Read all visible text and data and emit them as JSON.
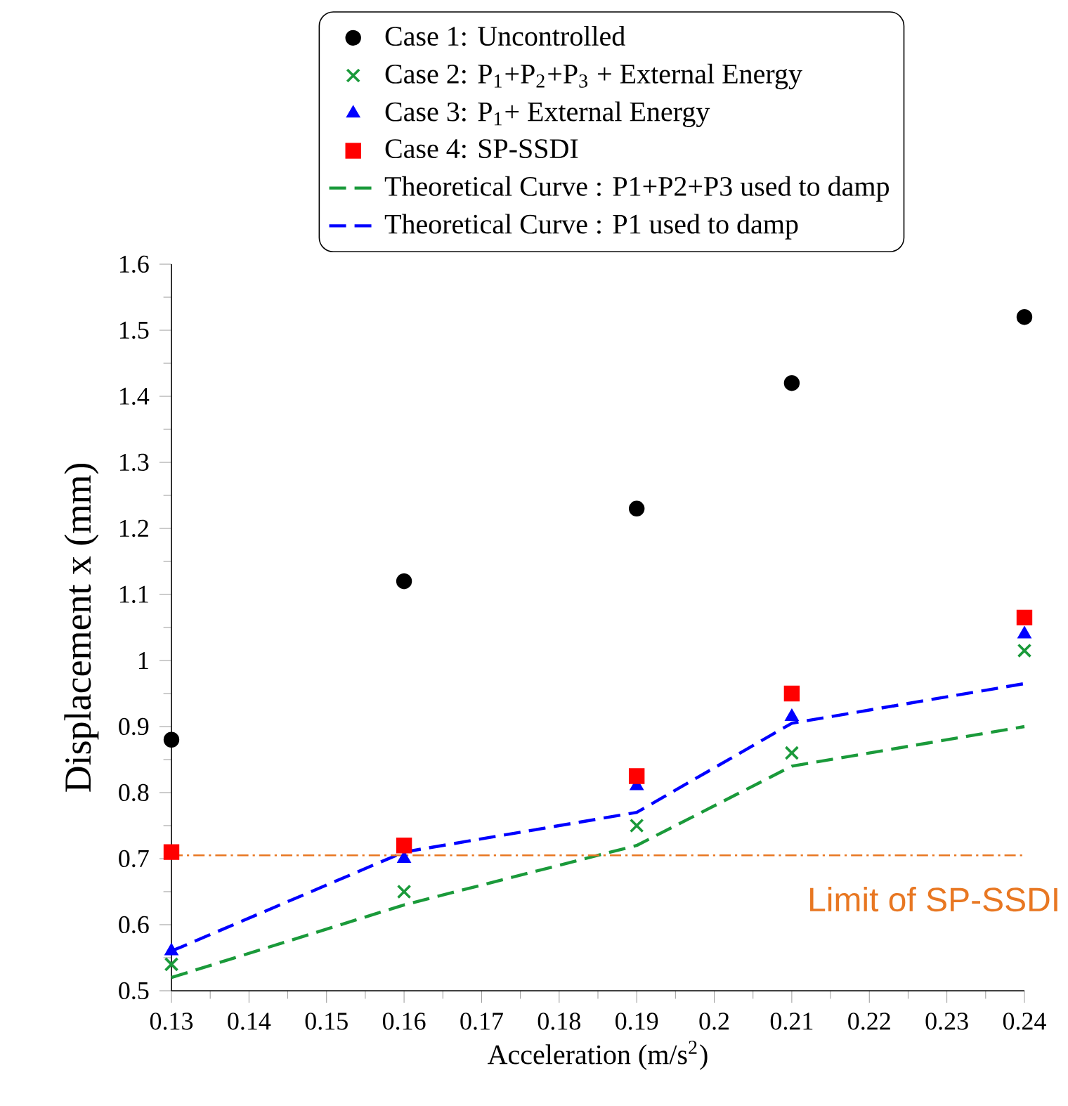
{
  "chart_data": {
    "type": "scatter",
    "xlabel": "Acceleration (m/s$^{2}$)",
    "ylabel": "Displacement x (mm)",
    "x": [
      0.13,
      0.16,
      0.19,
      0.21,
      0.24
    ],
    "series": [
      {
        "name": "Case 1: Uncontrolled",
        "color": "#000000",
        "marker": "circle",
        "values": [
          0.88,
          1.12,
          1.23,
          1.42,
          1.52
        ]
      },
      {
        "name": "Case 2: P$_{1}$+P$_{2}$+P$_{3}$ + External Energy",
        "color": "#1a9a3a",
        "marker": "cross",
        "values": [
          0.54,
          0.65,
          0.75,
          0.86,
          1.015
        ]
      },
      {
        "name": "Case 3: P$_{1}$+ External Energy",
        "color": "#0000ff",
        "marker": "triangle",
        "values": [
          0.56,
          0.7,
          0.81,
          0.915,
          1.04
        ]
      },
      {
        "name": "Case 4: SP-SSDI",
        "color": "#ff0000",
        "marker": "square",
        "values": [
          0.71,
          0.72,
          0.825,
          0.95,
          1.065
        ]
      },
      {
        "name": "Theoretical Curve : P1+P2+P3 used to damp",
        "type": "line",
        "color": "#1a9a3a",
        "line_style": "dashed",
        "marker": "none",
        "x": [
          0.13,
          0.16,
          0.19,
          0.21,
          0.24
        ],
        "values": [
          0.52,
          0.63,
          0.72,
          0.84,
          0.9
        ]
      },
      {
        "name": "Theoretical Curve : P1 used to damp",
        "type": "line",
        "color": "#0000ff",
        "line_style": "dashed",
        "marker": "none",
        "x": [
          0.13,
          0.16,
          0.19,
          0.21,
          0.24
        ],
        "values": [
          0.56,
          0.71,
          0.77,
          0.905,
          0.965
        ]
      }
    ],
    "ref_lines": [
      {
        "axis": "y",
        "value": 0.705,
        "label": "Limit of SP-SSDI",
        "color": "#e87722",
        "line_style": "dashdot"
      }
    ],
    "xlim": [
      0.13,
      0.24
    ],
    "xticks": [
      0.13,
      0.14,
      0.15,
      0.16,
      0.17,
      0.18,
      0.19,
      0.2,
      0.21,
      0.22,
      0.23,
      0.24
    ],
    "ylim": [
      0.5,
      1.6
    ],
    "yticks": [
      0.5,
      0.6,
      0.7,
      0.8,
      0.9,
      1,
      1.1,
      1.2,
      1.3,
      1.4,
      1.5,
      1.6
    ],
    "grid": false,
    "legend": "top"
  }
}
